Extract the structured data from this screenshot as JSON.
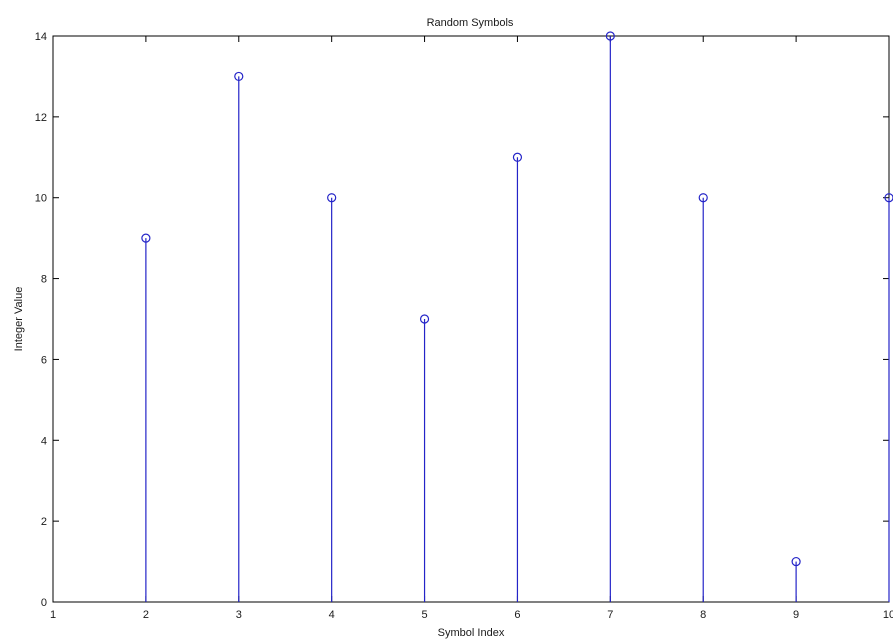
{
  "chart_data": {
    "type": "stem",
    "title": "Random Symbols",
    "xlabel": "Symbol Index",
    "ylabel": "Integer Value",
    "xlim": [
      1,
      10
    ],
    "ylim": [
      0,
      14
    ],
    "xticks": [
      "1",
      "2",
      "3",
      "4",
      "5",
      "6",
      "7",
      "8",
      "9",
      "10"
    ],
    "yticks": [
      "0",
      "2",
      "4",
      "6",
      "8",
      "10",
      "12",
      "14"
    ],
    "grid": false,
    "series": [
      {
        "x": [
          2,
          3,
          4,
          5,
          6,
          7,
          8,
          9,
          10
        ],
        "y": [
          9,
          13,
          10,
          7,
          11,
          14,
          10,
          1,
          10
        ],
        "color": "#2424c8",
        "marker": "circle"
      }
    ]
  }
}
